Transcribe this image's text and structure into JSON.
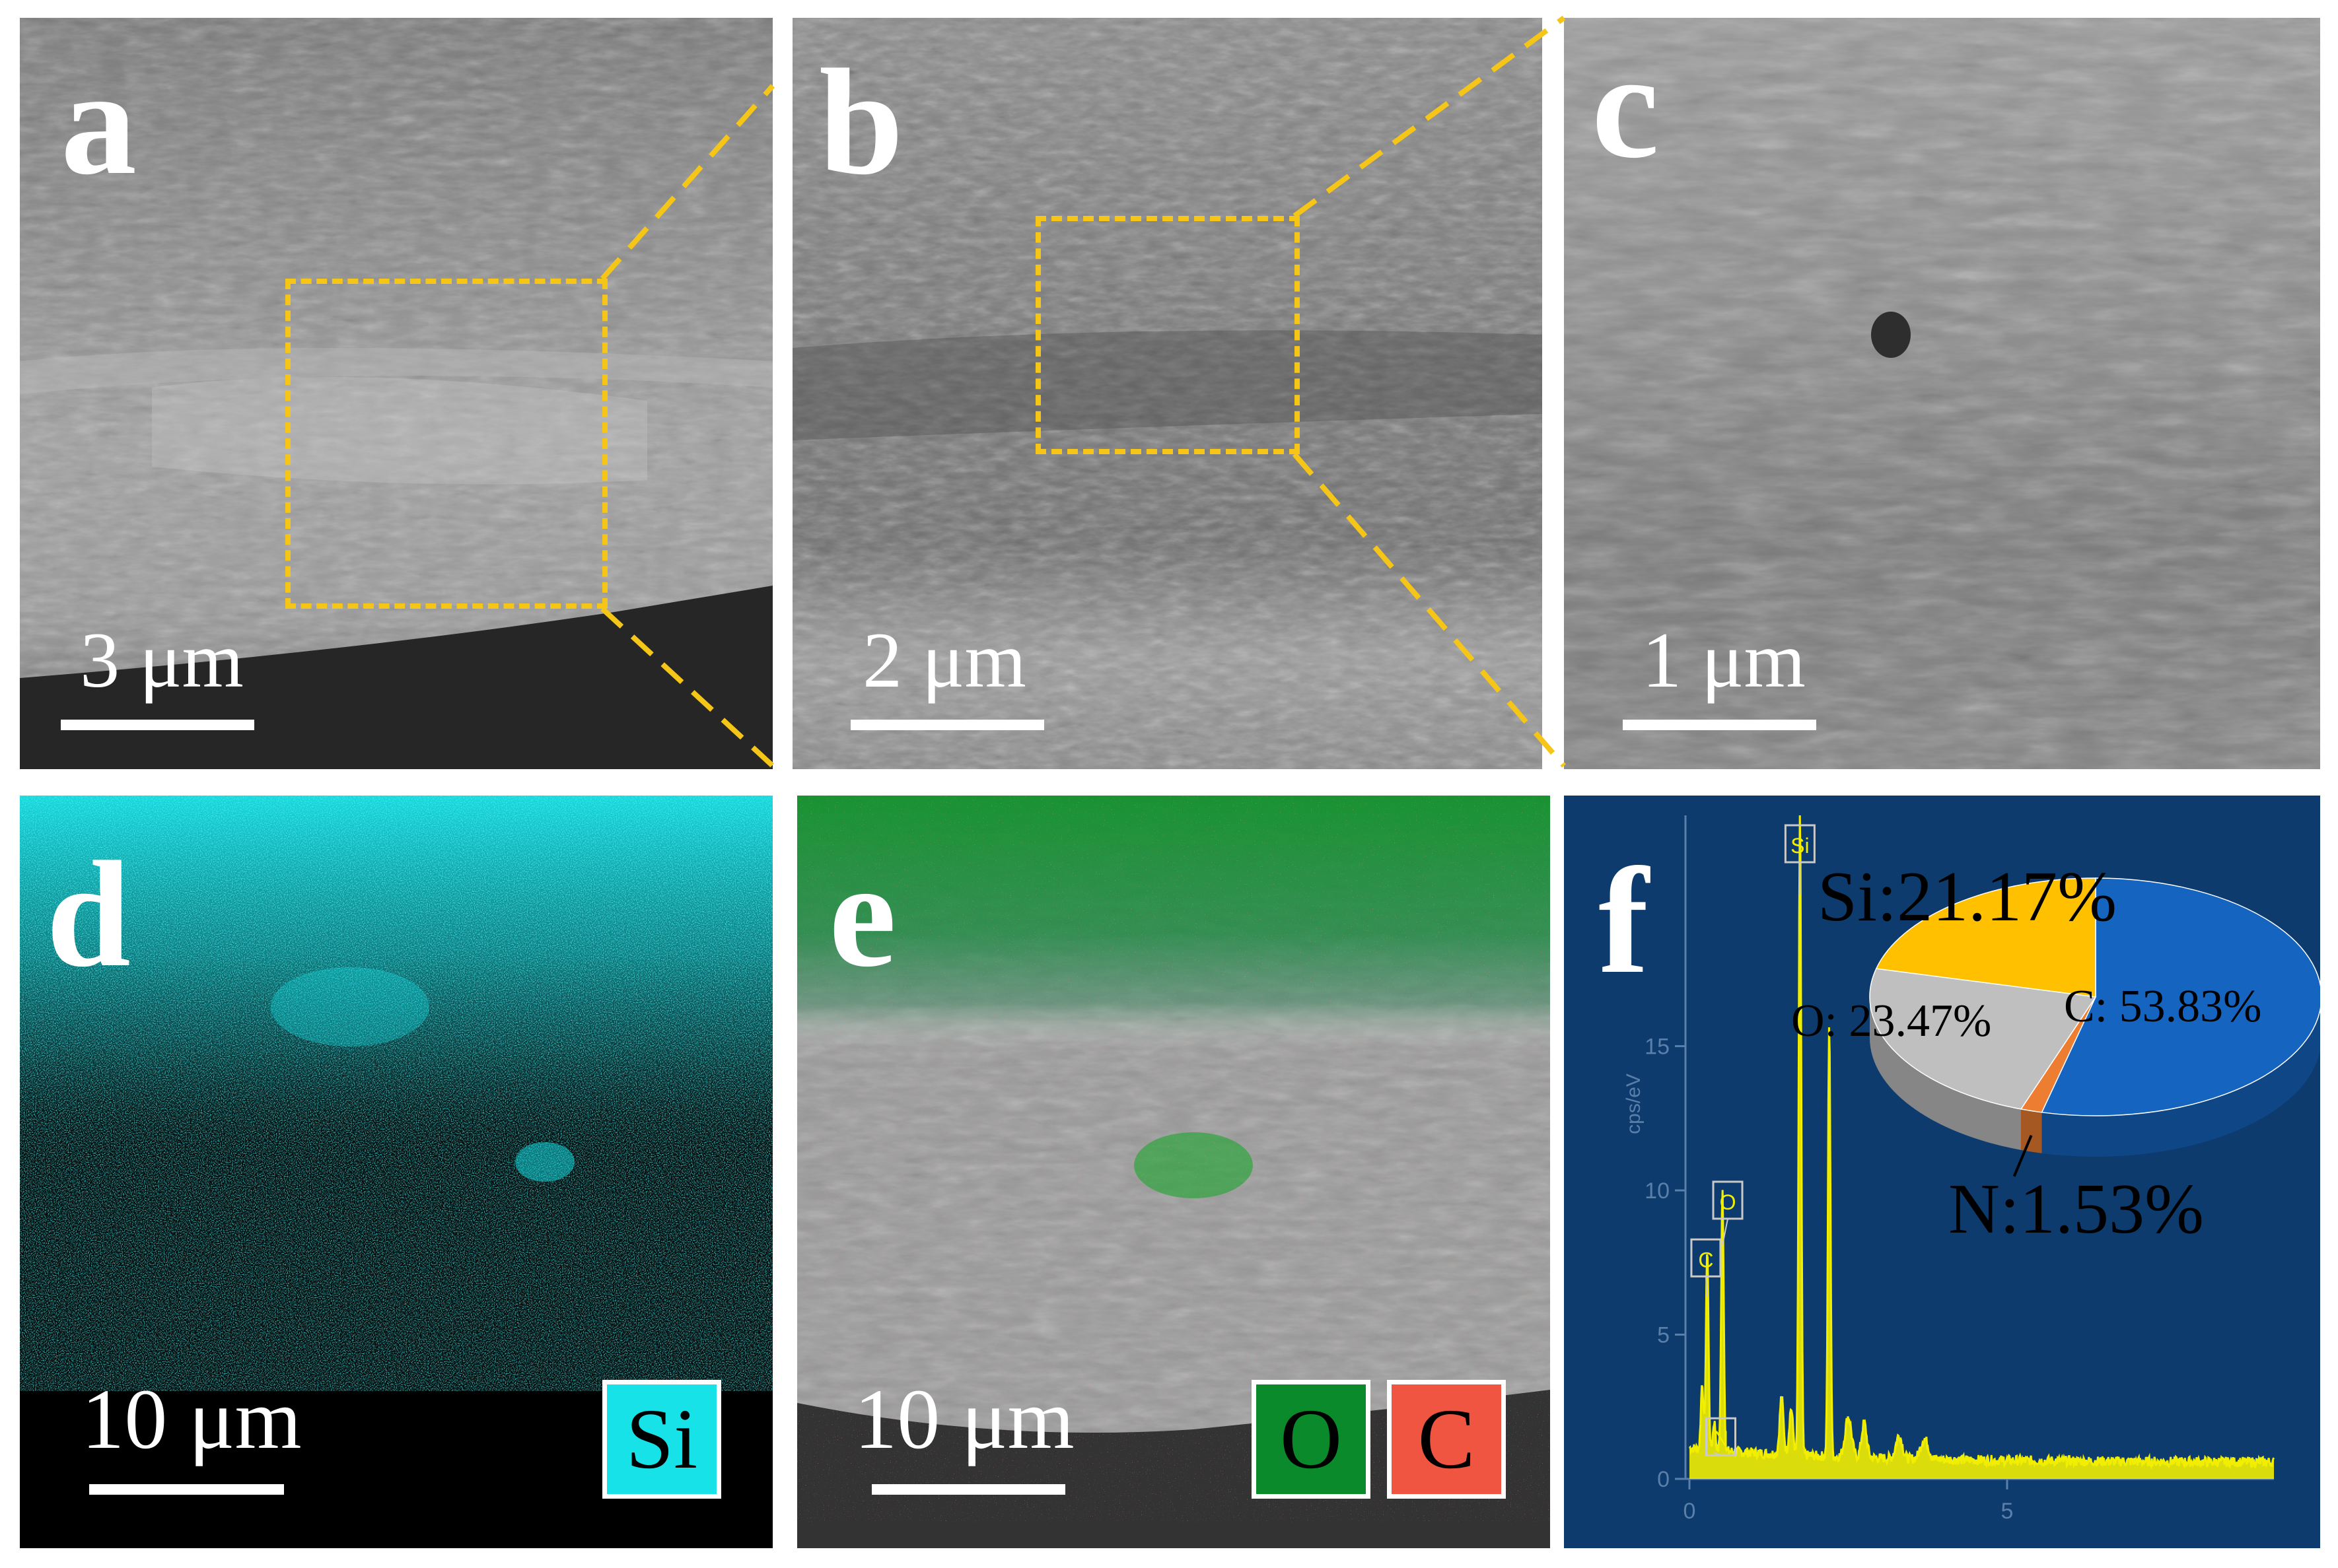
{
  "panels": {
    "a": {
      "label": "a",
      "scale": "3 μm"
    },
    "b": {
      "label": "b",
      "scale": "2 μm"
    },
    "c": {
      "label": "c",
      "scale": "1 μm"
    },
    "d": {
      "label": "d",
      "scale": "10 μm",
      "chip": "Si",
      "chip_color": "#16e2e8"
    },
    "e": {
      "label": "e",
      "scale": "10 μm",
      "chips": [
        {
          "text": "O",
          "color": "#0a8a2a"
        },
        {
          "text": "C",
          "color": "#ef5540"
        }
      ]
    },
    "f": {
      "label": "f"
    }
  },
  "colors": {
    "box": "#f5c518",
    "sem_gray": "#8c8c8c",
    "eds_bg": "#0d3b6e",
    "spectrum": "#f2ee00",
    "pie_si": "#ffc000",
    "pie_c": "#1565c0",
    "pie_o": "#bfbfbf",
    "pie_n": "#ed7d31"
  },
  "chart_data": {
    "type": "line",
    "ylabel": "cps/eV",
    "xlim": [
      0,
      9.2
    ],
    "ylim": [
      0,
      23
    ],
    "x_ticks": [
      "0",
      "5"
    ],
    "y_ticks": [
      "0",
      "5",
      "10",
      "15"
    ],
    "peaks": [
      {
        "label": "C",
        "x": 0.28,
        "y": 7
      },
      {
        "label": "N",
        "x": 0.39,
        "y": 1
      },
      {
        "label": "O",
        "x": 0.52,
        "y": 9
      },
      {
        "label": "Si",
        "x": 1.74,
        "y": 22.5
      }
    ],
    "secondary_peak": {
      "x": 2.2,
      "y": 15
    },
    "pie": {
      "type": "pie",
      "slices": [
        {
          "label": "C: 53.83%",
          "value": 53.83,
          "color": "#1565c0"
        },
        {
          "label": "N:1.53%",
          "value": 1.53,
          "color": "#ed7d31"
        },
        {
          "label": "O: 23.47%",
          "value": 23.47,
          "color": "#bfbfbf"
        },
        {
          "label": "Si:21.17%",
          "value": 21.17,
          "color": "#ffc000"
        }
      ]
    }
  }
}
